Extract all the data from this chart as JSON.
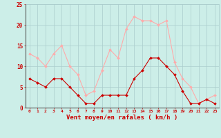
{
  "hours": [
    0,
    1,
    2,
    3,
    4,
    5,
    6,
    7,
    8,
    9,
    10,
    11,
    12,
    13,
    14,
    15,
    16,
    17,
    18,
    19,
    20,
    21,
    22,
    23
  ],
  "wind_avg": [
    7,
    6,
    5,
    7,
    7,
    5,
    3,
    1,
    1,
    3,
    3,
    3,
    3,
    7,
    9,
    12,
    12,
    10,
    8,
    4,
    1,
    1,
    2,
    1
  ],
  "wind_gust": [
    13,
    12,
    10,
    13,
    15,
    10,
    8,
    3,
    4,
    9,
    14,
    12,
    19,
    22,
    21,
    21,
    20,
    21,
    11,
    7,
    5,
    1,
    2,
    3
  ],
  "avg_color": "#cc0000",
  "gust_color": "#ffaaaa",
  "bg_color": "#cceee8",
  "grid_color": "#aacccc",
  "xlabel": "Vent moyen/en rafales ( km/h )",
  "xlabel_color": "#cc0000",
  "axis_color": "#cc0000",
  "ylim": [
    0,
    25
  ],
  "yticks": [
    0,
    5,
    10,
    15,
    20,
    25
  ]
}
